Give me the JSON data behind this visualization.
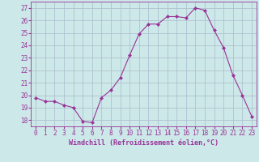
{
  "x": [
    0,
    1,
    2,
    3,
    4,
    5,
    6,
    7,
    8,
    9,
    10,
    11,
    12,
    13,
    14,
    15,
    16,
    17,
    18,
    19,
    20,
    21,
    22,
    23
  ],
  "y": [
    19.8,
    19.5,
    19.5,
    19.2,
    19.0,
    17.9,
    17.8,
    19.8,
    20.4,
    21.4,
    23.2,
    24.9,
    25.7,
    25.7,
    26.3,
    26.3,
    26.2,
    27.0,
    26.8,
    25.2,
    23.8,
    21.6,
    20.0,
    18.3
  ],
  "line_color": "#993399",
  "marker": "D",
  "marker_size": 2.0,
  "bg_color": "#cce8e8",
  "grid_color": "#aabbcc",
  "xlabel": "Windchill (Refroidissement éolien,°C)",
  "xlabel_color": "#993399",
  "tick_color": "#993399",
  "ylim": [
    17.5,
    27.5
  ],
  "yticks": [
    18,
    19,
    20,
    21,
    22,
    23,
    24,
    25,
    26,
    27
  ],
  "xticks": [
    0,
    1,
    2,
    3,
    4,
    5,
    6,
    7,
    8,
    9,
    10,
    11,
    12,
    13,
    14,
    15,
    16,
    17,
    18,
    19,
    20,
    21,
    22,
    23
  ],
  "spine_color": "#993399",
  "tick_fontsize": 5.5,
  "xlabel_fontsize": 6.0
}
